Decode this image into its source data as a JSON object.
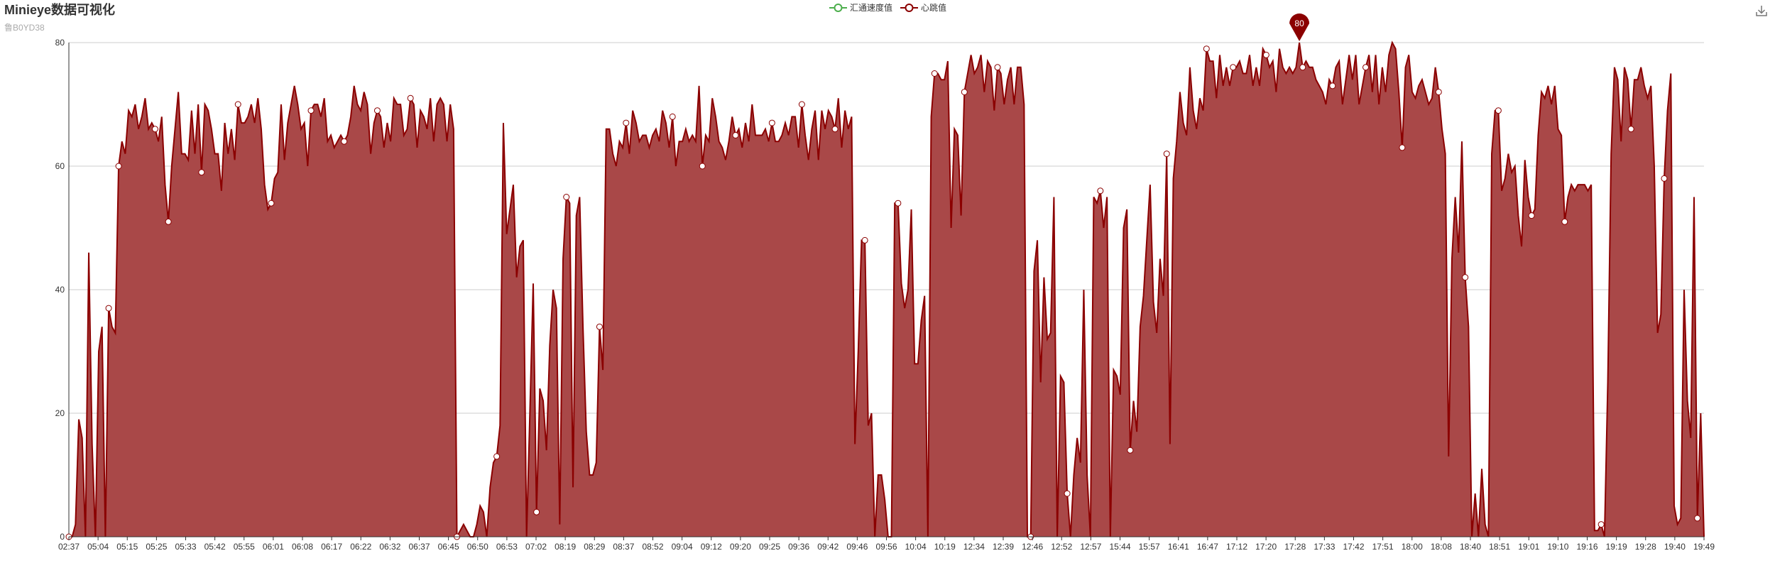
{
  "title": "Minieye数据可视化",
  "subtitle": "鲁B0YD38",
  "toolbox": {
    "icon": "download-icon"
  },
  "colors": {
    "heart": "#8b0000",
    "heart_area": "#a94848",
    "speed": "#4cae4c",
    "grid": "#cccccc",
    "axis": "#333333"
  },
  "chart_data": {
    "type": "area",
    "title": "Minieye数据可视化",
    "subtitle": "鲁B0YD38",
    "legend": [
      {
        "name": "汇通速度值",
        "color": "#4cae4c"
      },
      {
        "name": "心跳值",
        "color": "#8b0000"
      }
    ],
    "legend_position": "top-center",
    "ylim": [
      0,
      80
    ],
    "yticks": [
      0,
      20,
      40,
      60,
      80
    ],
    "grid": true,
    "xlabels": [
      "02:37",
      "05:04",
      "05:15",
      "05:25",
      "05:33",
      "05:42",
      "05:55",
      "06:01",
      "06:08",
      "06:17",
      "06:22",
      "06:32",
      "06:37",
      "06:45",
      "06:50",
      "06:53",
      "07:02",
      "08:19",
      "08:29",
      "08:37",
      "08:52",
      "09:04",
      "09:12",
      "09:20",
      "09:25",
      "09:36",
      "09:42",
      "09:46",
      "09:56",
      "10:04",
      "10:19",
      "12:34",
      "12:39",
      "12:46",
      "12:52",
      "12:57",
      "15:44",
      "15:57",
      "16:41",
      "16:47",
      "17:12",
      "17:20",
      "17:28",
      "17:33",
      "17:42",
      "17:51",
      "18:00",
      "18:08",
      "18:40",
      "18:51",
      "19:01",
      "19:10",
      "19:16",
      "19:19",
      "19:28",
      "19:40",
      "19:49"
    ],
    "max_marker": {
      "label": "80",
      "value": 80
    },
    "series": [
      {
        "name": "心跳值",
        "values": [
          0,
          0,
          2,
          19,
          16,
          0,
          46,
          15,
          0,
          30,
          34,
          0,
          37,
          34,
          33,
          60,
          64,
          62,
          69,
          68,
          70,
          66,
          68,
          71,
          66,
          67,
          66,
          64,
          68,
          57,
          51,
          60,
          66,
          72,
          62,
          62,
          61,
          69,
          62,
          70,
          59,
          70,
          69,
          66,
          62,
          62,
          56,
          67,
          62,
          66,
          61,
          70,
          67,
          67,
          68,
          70,
          67,
          71,
          66,
          57,
          53,
          54,
          58,
          59,
          70,
          61,
          67,
          70,
          73,
          70,
          66,
          67,
          60,
          69,
          70,
          70,
          68,
          71,
          64,
          65,
          63,
          64,
          65,
          64,
          65,
          68,
          73,
          70,
          69,
          72,
          70,
          62,
          67,
          69,
          68,
          63,
          67,
          64,
          71,
          70,
          70,
          65,
          66,
          71,
          70,
          63,
          69,
          68,
          66,
          71,
          64,
          70,
          71,
          70,
          64,
          70,
          66,
          0,
          1,
          2,
          1,
          0,
          0,
          2,
          5,
          4,
          0,
          8,
          12,
          13,
          18,
          67,
          49,
          53,
          57,
          42,
          47,
          48,
          0,
          20,
          41,
          4,
          24,
          22,
          14,
          31,
          40,
          37,
          2,
          45,
          55,
          54,
          8,
          52,
          55,
          34,
          17,
          10,
          10,
          12,
          34,
          27,
          66,
          66,
          62,
          60,
          64,
          63,
          67,
          62,
          69,
          67,
          64,
          65,
          65,
          63,
          65,
          66,
          64,
          69,
          67,
          63,
          68,
          60,
          64,
          64,
          66,
          64,
          65,
          64,
          73,
          60,
          65,
          64,
          71,
          68,
          64,
          63,
          61,
          64,
          68,
          65,
          66,
          63,
          67,
          64,
          70,
          65,
          65,
          65,
          66,
          64,
          67,
          64,
          64,
          65,
          67,
          65,
          68,
          68,
          63,
          70,
          65,
          61,
          66,
          69,
          61,
          69,
          66,
          69,
          68,
          66,
          71,
          63,
          69,
          66,
          68,
          15,
          30,
          48,
          48,
          18,
          20,
          0,
          10,
          10,
          6,
          0,
          0,
          54,
          54,
          41,
          37,
          40,
          53,
          28,
          28,
          35,
          39,
          0,
          68,
          75,
          75,
          74,
          74,
          77,
          50,
          66,
          65,
          52,
          72,
          75,
          78,
          75,
          76,
          78,
          72,
          77,
          76,
          69,
          76,
          75,
          70,
          74,
          76,
          70,
          76,
          76,
          70,
          0,
          0,
          43,
          48,
          25,
          42,
          32,
          33,
          55,
          0,
          26,
          25,
          7,
          0,
          10,
          16,
          12,
          40,
          10,
          0,
          55,
          54,
          56,
          50,
          55,
          0,
          27,
          26,
          23,
          50,
          53,
          14,
          22,
          17,
          34,
          39,
          48,
          57,
          38,
          33,
          45,
          39,
          62,
          15,
          58,
          64,
          72,
          67,
          65,
          76,
          69,
          66,
          71,
          69,
          79,
          77,
          77,
          71,
          78,
          73,
          76,
          73,
          76,
          76,
          77,
          75,
          75,
          78,
          73,
          76,
          73,
          79,
          78,
          76,
          77,
          72,
          79,
          76,
          75,
          76,
          75,
          76,
          80,
          76,
          77,
          76,
          76,
          74,
          73,
          72,
          70,
          74,
          73,
          76,
          77,
          70,
          74,
          78,
          74,
          78,
          70,
          73,
          76,
          78,
          72,
          78,
          70,
          76,
          72,
          78,
          80,
          79,
          72,
          63,
          76,
          78,
          72,
          71,
          73,
          74,
          72,
          70,
          71,
          76,
          72,
          66,
          62,
          13,
          45,
          55,
          46,
          64,
          42,
          34,
          0,
          7,
          0,
          11,
          2,
          0,
          62,
          69,
          69,
          56,
          58,
          62,
          59,
          60,
          52,
          47,
          61,
          55,
          52,
          53,
          65,
          72,
          71,
          73,
          70,
          73,
          66,
          65,
          51,
          55,
          57,
          56,
          57,
          57,
          57,
          56,
          57,
          1,
          1,
          2,
          0,
          25,
          62,
          76,
          74,
          64,
          76,
          74,
          66,
          74,
          74,
          76,
          73,
          71,
          73,
          60,
          33,
          36,
          58,
          69,
          75,
          5,
          2,
          3,
          40,
          22,
          16,
          55,
          3,
          20,
          0
        ]
      }
    ],
    "points": [
      0,
      12,
      15,
      26,
      30,
      40,
      51,
      61,
      73,
      83,
      93,
      103,
      117,
      129,
      141,
      150,
      160,
      168,
      182,
      191,
      201,
      212,
      221,
      231,
      240,
      250,
      261,
      270,
      280,
      290,
      301,
      311,
      320,
      331,
      343,
      351,
      361,
      372,
      381,
      391,
      402,
      413,
      421,
      431,
      441,
      451,
      462,
      471,
      481,
      491,
      501,
      510,
      518,
      528,
      534,
      541,
      549,
      554,
      561,
      571,
      581,
      589,
      598,
      606,
      612
    ]
  }
}
